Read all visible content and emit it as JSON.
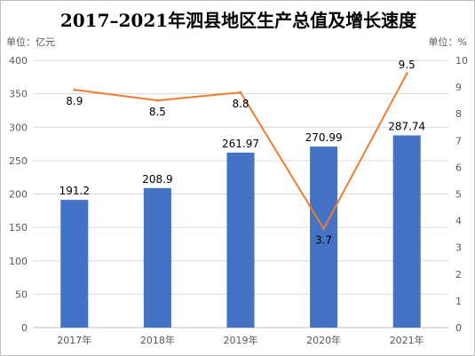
{
  "title": "2017–2021年泗县地区生产总值及增长速度",
  "unit_left": "单位：亿元",
  "unit_right": "单位：%",
  "colors": {
    "bar": "#4472C4",
    "line": "#ED7D31",
    "grid": "#d9d9d9",
    "axis_text": "#595959"
  },
  "chart_data": {
    "type": "bar+line",
    "categories": [
      "2017年",
      "2018年",
      "2019年",
      "2020年",
      "2021年"
    ],
    "series": [
      {
        "values": [
          191.2,
          208.9,
          261.97,
          270.99,
          287.74
        ],
        "axis": "left",
        "kind": "bar",
        "labels": [
          "191.2",
          "208.9",
          "261.97",
          "270.99",
          "287.74"
        ]
      },
      {
        "values": [
          8.9,
          8.5,
          8.8,
          3.7,
          9.5
        ],
        "axis": "right",
        "kind": "line",
        "labels": [
          "8.9",
          "8.5",
          "8.8",
          "3.7",
          "9.5"
        ]
      }
    ],
    "y_left": {
      "min": 0,
      "max": 400,
      "ticks": [
        "0",
        "50",
        "100",
        "150",
        "200",
        "250",
        "300",
        "350",
        "400"
      ]
    },
    "y_right": {
      "min": 0,
      "max": 10,
      "ticks": [
        "0",
        "1",
        "2",
        "3",
        "4",
        "5",
        "6",
        "7",
        "8",
        "9",
        "10"
      ]
    },
    "grid": true,
    "legend": "none"
  }
}
